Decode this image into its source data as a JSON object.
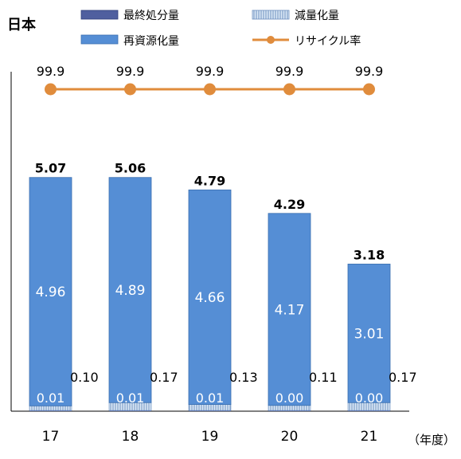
{
  "chart_data": {
    "type": "bar",
    "title": "日本",
    "categories": [
      "17",
      "18",
      "19",
      "20",
      "21"
    ],
    "x_unit": "（年度）",
    "totals": [
      "5.07",
      "5.06",
      "4.79",
      "4.29",
      "3.18"
    ],
    "series": [
      {
        "name": "最終処分量",
        "kind": "stacked-bar",
        "color": "#4f5f9f",
        "values": [
          0.01,
          0.01,
          0.01,
          0.0,
          0.0
        ],
        "labels": [
          "0.01",
          "0.01",
          "0.01",
          "0.00",
          "0.00"
        ]
      },
      {
        "name": "減量化量",
        "kind": "stacked-bar",
        "color": "#cfe0f3",
        "values": [
          0.1,
          0.17,
          0.13,
          0.11,
          0.17
        ],
        "labels": [
          "0.10",
          "0.17",
          "0.13",
          "0.11",
          "0.17"
        ]
      },
      {
        "name": "再資源化量",
        "kind": "stacked-bar",
        "color": "#558ed5",
        "values": [
          4.96,
          4.89,
          4.66,
          4.17,
          3.01
        ],
        "labels": [
          "4.96",
          "4.89",
          "4.66",
          "4.17",
          "3.01"
        ]
      },
      {
        "name": "リサイクル率",
        "kind": "line",
        "color": "#e08c3c",
        "values": [
          99.9,
          99.9,
          99.9,
          99.9,
          99.9
        ],
        "labels": [
          "99.9",
          "99.9",
          "99.9",
          "99.9",
          "99.9"
        ]
      }
    ],
    "legend": {
      "position": "top",
      "items": [
        "最終処分量",
        "減量化量",
        "再資源化量",
        "リサイクル率"
      ]
    },
    "bar_ylim": [
      0,
      6.23
    ],
    "grid": false
  }
}
